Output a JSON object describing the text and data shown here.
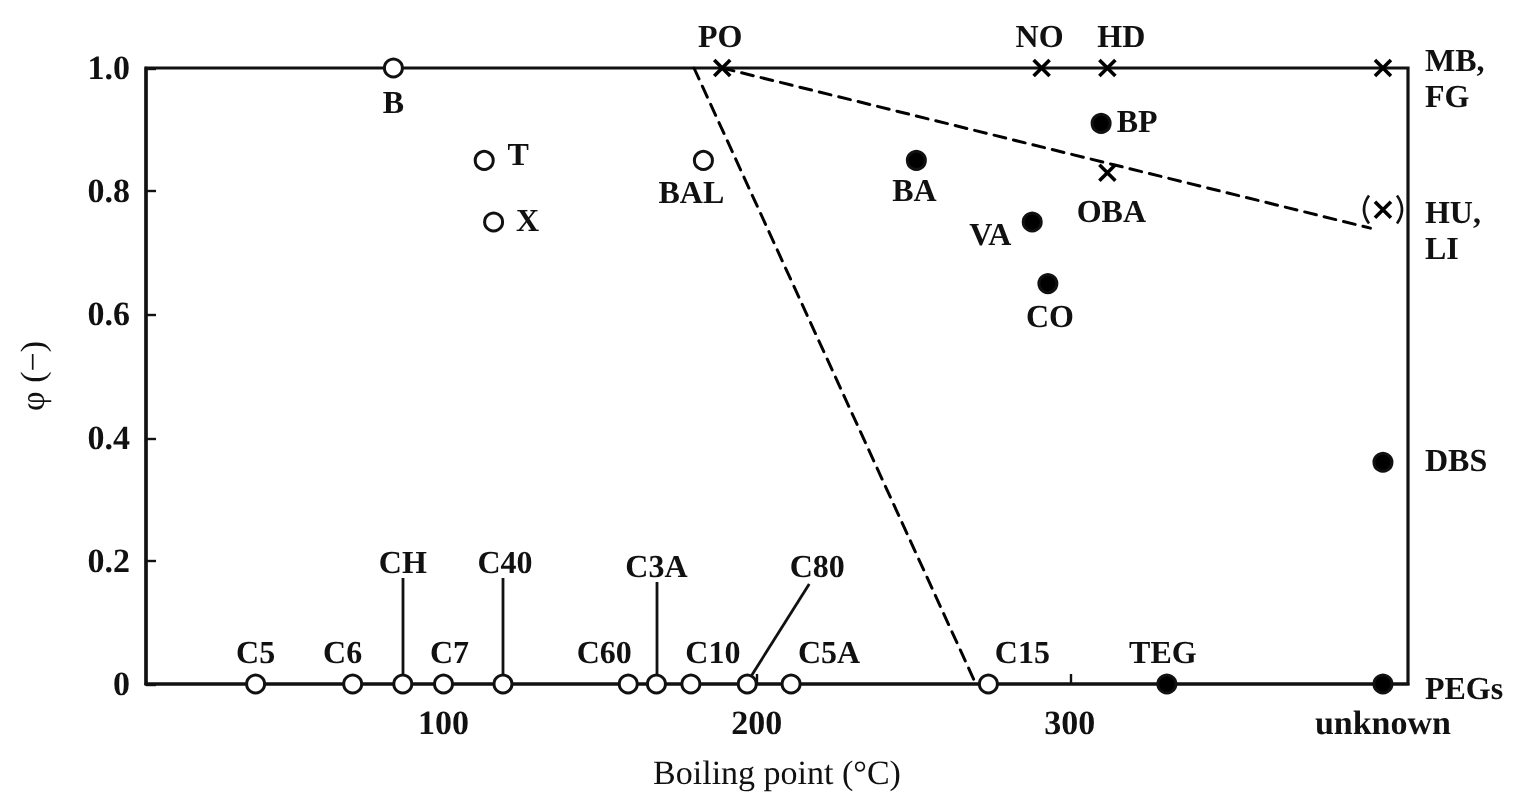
{
  "chart_data": {
    "type": "scatter",
    "xlabel": "Boiling point (°C)",
    "ylabel": "φ (−)",
    "xlim": [
      5,
      408
    ],
    "xticks": [
      100,
      200,
      300,
      {
        "value": 400,
        "label": "unknown"
      }
    ],
    "ylim": [
      0,
      1
    ],
    "yticks": [
      0,
      0.2,
      0.4,
      0.6,
      0.8,
      {
        "value": 1,
        "label": "1.0"
      }
    ],
    "grid": false,
    "series": [
      {
        "marker": "circle",
        "color": "#ffffff",
        "x": [
          40,
          71,
          87,
          100,
          119,
          159,
          168,
          179,
          197,
          211,
          274,
          84,
          113,
          116,
          183
        ],
        "values": [
          0,
          0,
          0,
          0,
          0,
          0,
          0,
          0,
          0,
          0,
          0,
          1,
          0.85,
          0.75,
          0.85
        ]
      },
      {
        "marker": "circle",
        "color": "#000000",
        "x": [
          251,
          288,
          293,
          310,
          331,
          400,
          400
        ],
        "values": [
          0.85,
          0.75,
          0.65,
          0.91,
          0,
          0.36,
          0
        ]
      },
      {
        "marker": "cross",
        "color": "#000000",
        "x": [
          189,
          291,
          312,
          312,
          400,
          400
        ],
        "values": [
          1,
          1,
          1,
          0.83,
          1,
          0.77
        ]
      },
      {
        "type": "line",
        "marker": "none",
        "line_style": "dashed",
        "color": "#000000",
        "x": [
          180,
          270
        ],
        "values": [
          1,
          0
        ]
      },
      {
        "type": "line",
        "marker": "none",
        "line_style": "dashed",
        "color": "#000000",
        "x": [
          189,
          396
        ],
        "values": [
          1,
          0.74
        ]
      }
    ],
    "annotations": [
      {
        "text": "C5",
        "x": 40,
        "y": 0
      },
      {
        "text": "C6",
        "x": 71,
        "y": 0
      },
      {
        "text": "CH",
        "x": 87,
        "y": 0
      },
      {
        "text": "C7",
        "x": 100,
        "y": 0
      },
      {
        "text": "C40",
        "x": 119,
        "y": 0
      },
      {
        "text": "C60",
        "x": 159,
        "y": 0
      },
      {
        "text": "C3A",
        "x": 168,
        "y": 0
      },
      {
        "text": "C10",
        "x": 179,
        "y": 0
      },
      {
        "text": "C80",
        "x": 197,
        "y": 0
      },
      {
        "text": "C5A",
        "x": 211,
        "y": 0
      },
      {
        "text": "C15",
        "x": 274,
        "y": 0
      },
      {
        "text": "TEG",
        "x": 331,
        "y": 0
      },
      {
        "text": "B",
        "x": 84,
        "y": 1
      },
      {
        "text": "T",
        "x": 113,
        "y": 0.85
      },
      {
        "text": "X",
        "x": 116,
        "y": 0.75
      },
      {
        "text": "BAL",
        "x": 183,
        "y": 0.85
      },
      {
        "text": "PO",
        "x": 189,
        "y": 1
      },
      {
        "text": "BA",
        "x": 251,
        "y": 0.85
      },
      {
        "text": "VA",
        "x": 288,
        "y": 0.75
      },
      {
        "text": "CO",
        "x": 293,
        "y": 0.65
      },
      {
        "text": "BP",
        "x": 310,
        "y": 0.91
      },
      {
        "text": "NO",
        "x": 291,
        "y": 1
      },
      {
        "text": "HD",
        "x": 312,
        "y": 1
      },
      {
        "text": "OBA",
        "x": 312,
        "y": 0.83
      },
      {
        "text": "MB, FG",
        "x": 400,
        "y": 1
      },
      {
        "text": "HU, LI",
        "x": 400,
        "y": 0.77
      },
      {
        "text": "DBS",
        "x": 400,
        "y": 0.36
      },
      {
        "text": "PEGs",
        "x": 400,
        "y": 0
      }
    ]
  }
}
